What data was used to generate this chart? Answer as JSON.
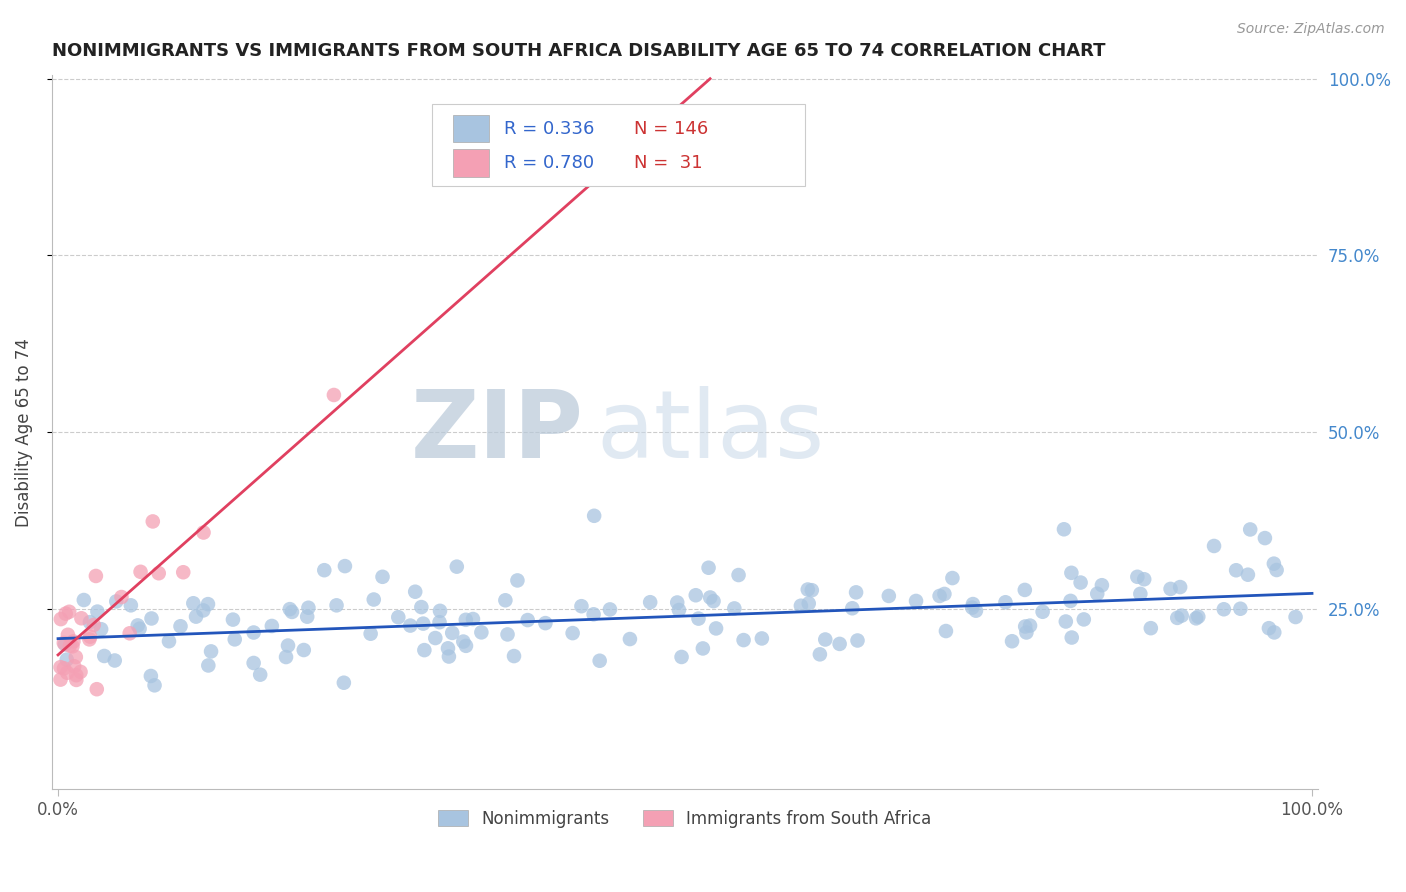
{
  "title": "NONIMMIGRANTS VS IMMIGRANTS FROM SOUTH AFRICA DISABILITY AGE 65 TO 74 CORRELATION CHART",
  "source_text": "Source: ZipAtlas.com",
  "ylabel": "Disability Age 65 to 74",
  "xlim": [
    0.0,
    1.0
  ],
  "ylim": [
    0.0,
    1.0
  ],
  "blue_R": 0.336,
  "blue_N": 146,
  "pink_R": 0.78,
  "pink_N": 31,
  "blue_color": "#a8c4e0",
  "pink_color": "#f4a0b4",
  "blue_line_color": "#2255bb",
  "pink_line_color": "#e04060",
  "watermark_zip": "ZIP",
  "watermark_atlas": "atlas",
  "legend_label_1": "Nonimmigrants",
  "legend_label_2": "Immigrants from South Africa",
  "blue_line_x0": 0.0,
  "blue_line_y0": 0.208,
  "blue_line_x1": 1.0,
  "blue_line_y1": 0.272,
  "pink_line_x0": 0.0,
  "pink_line_y0": 0.185,
  "pink_line_x1": 0.52,
  "pink_line_y1": 1.0
}
